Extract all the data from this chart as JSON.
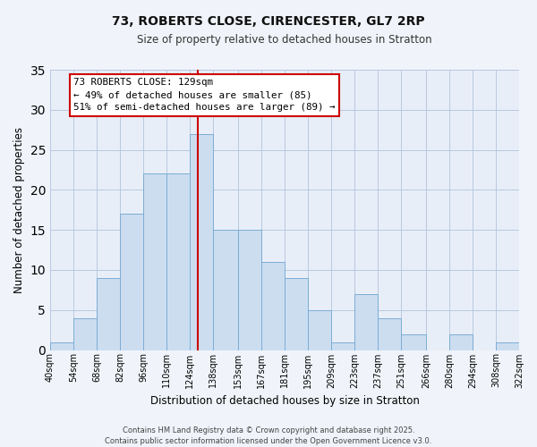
{
  "title": "73, ROBERTS CLOSE, CIRENCESTER, GL7 2RP",
  "subtitle": "Size of property relative to detached houses in Stratton",
  "xlabel": "Distribution of detached houses by size in Stratton",
  "ylabel": "Number of detached properties",
  "bin_edges": [
    40,
    54,
    68,
    82,
    96,
    110,
    124,
    138,
    153,
    167,
    181,
    195,
    209,
    223,
    237,
    251,
    266,
    280,
    294,
    308,
    322
  ],
  "bin_labels": [
    "40sqm",
    "54sqm",
    "68sqm",
    "82sqm",
    "96sqm",
    "110sqm",
    "124sqm",
    "138sqm",
    "153sqm",
    "167sqm",
    "181sqm",
    "195sqm",
    "209sqm",
    "223sqm",
    "237sqm",
    "251sqm",
    "266sqm",
    "280sqm",
    "294sqm",
    "308sqm",
    "322sqm"
  ],
  "counts": [
    1,
    4,
    9,
    17,
    22,
    22,
    27,
    15,
    15,
    11,
    9,
    5,
    1,
    7,
    4,
    2,
    0,
    2,
    0,
    1
  ],
  "bar_color": "#ccddf0",
  "bar_edge_color": "#7badd4",
  "property_line_x": 129,
  "property_line_color": "#cc0000",
  "ylim": [
    0,
    35
  ],
  "yticks": [
    0,
    5,
    10,
    15,
    20,
    25,
    30,
    35
  ],
  "annotation_title": "73 ROBERTS CLOSE: 129sqm",
  "annotation_line1": "← 49% of detached houses are smaller (85)",
  "annotation_line2": "51% of semi-detached houses are larger (89) →",
  "background_color": "#f0f4fa",
  "plot_bg_color": "#e8eef8",
  "grid_color": "#b8c8e0",
  "footer_line1": "Contains HM Land Registry data © Crown copyright and database right 2025.",
  "footer_line2": "Contains public sector information licensed under the Open Government Licence v3.0."
}
